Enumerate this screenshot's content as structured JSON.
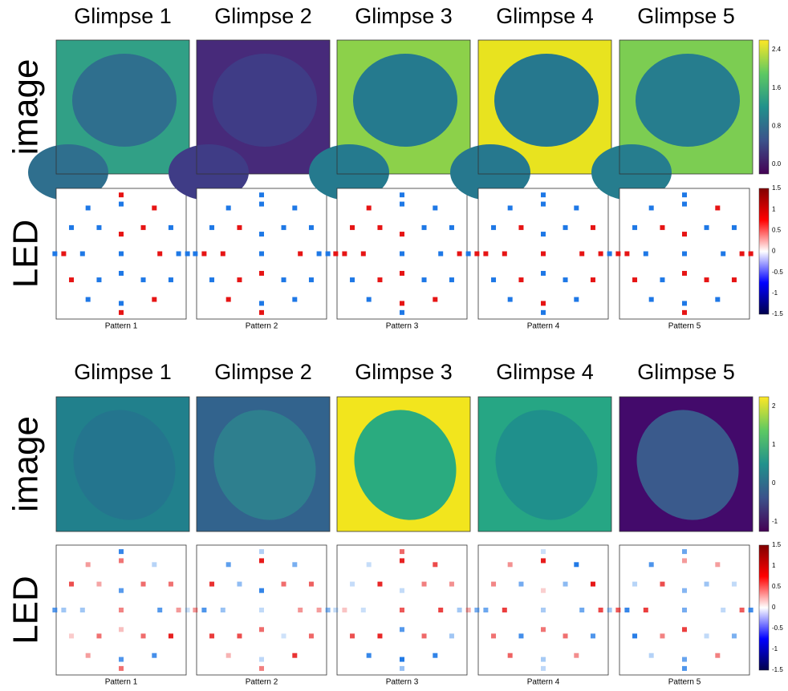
{
  "panels": [
    {
      "glimpse_titles": [
        "Glimpse 1",
        "Glimpse 2",
        "Glimpse 3",
        "Glimpse 4",
        "Glimpse 5"
      ],
      "row_labels": {
        "image": "image",
        "led": "LED"
      },
      "image_colorbar_ticks": [
        "2.4",
        "1.6",
        "0.8",
        "0.0"
      ],
      "led_colorbar_ticks": [
        "1.5",
        "1",
        "0.5",
        "0",
        "-0.5",
        "-1",
        "-1.5"
      ],
      "pattern_labels": [
        "Pattern 1",
        "Pattern 2",
        "Pattern 3",
        "Pattern 4",
        "Pattern 5"
      ]
    },
    {
      "glimpse_titles": [
        "Glimpse 1",
        "Glimpse 2",
        "Glimpse 3",
        "Glimpse 4",
        "Glimpse 5"
      ],
      "row_labels": {
        "image": "image",
        "led": "LED"
      },
      "image_colorbar_ticks": [
        "2",
        "1",
        "0",
        "-1"
      ],
      "led_colorbar_ticks": [
        "1.5",
        "1",
        "0.5",
        "0",
        "-0.5",
        "-1",
        "-1.5"
      ],
      "pattern_labels": [
        "Pattern 1",
        "Pattern 2",
        "Pattern 3",
        "Pattern 4",
        "Pattern 5"
      ]
    }
  ]
}
